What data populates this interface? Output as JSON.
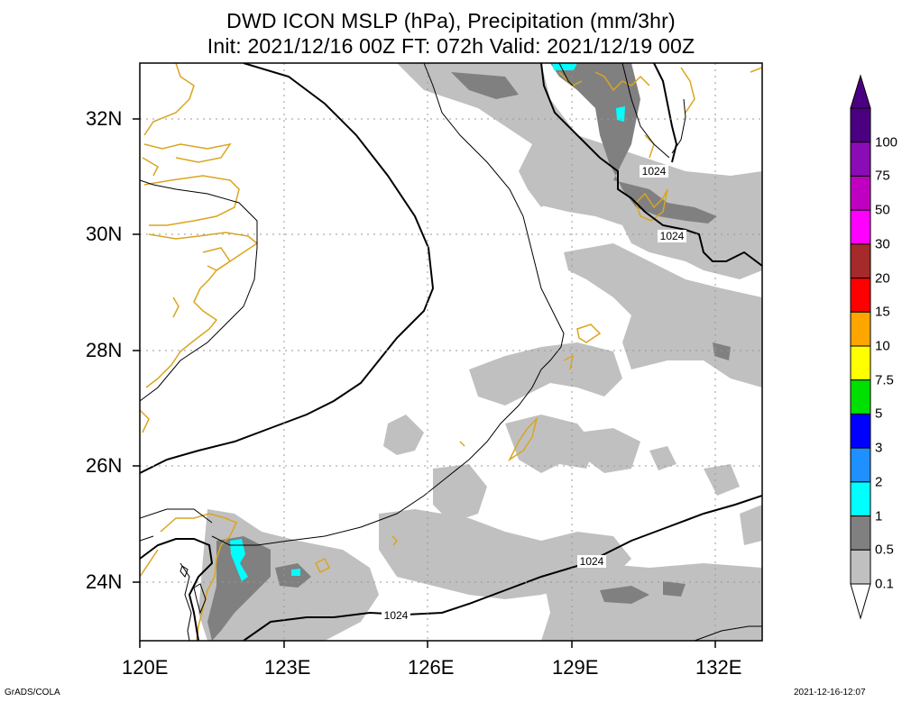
{
  "title": {
    "line1": "DWD ICON MSLP (hPa), Precipitation (mm/3hr)",
    "line2": "Init: 2021/12/16 00Z  FT: 072h  Valid: 2021/12/19 00Z"
  },
  "axes": {
    "lon_labels": [
      "120E",
      "123E",
      "126E",
      "129E",
      "132E"
    ],
    "lat_labels": [
      "32N",
      "30N",
      "28N",
      "26N",
      "24N"
    ]
  },
  "contour_label": "1024",
  "colorbar": {
    "labels": [
      "100",
      "75",
      "50",
      "30",
      "20",
      "15",
      "10",
      "7.5",
      "5",
      "3",
      "2",
      "1",
      "0.5",
      "0.1"
    ],
    "colors": [
      "#4b0082",
      "#8a0cb4",
      "#c000c0",
      "#ff00ff",
      "#a52a2a",
      "#ff0000",
      "#ffa500",
      "#ffff00",
      "#00e000",
      "#0000ff",
      "#1e90ff",
      "#00ffff",
      "#808080",
      "#c0c0c0"
    ]
  },
  "footer": {
    "left": "GrADS/COLA",
    "right": "2021-12-16-12:07"
  }
}
